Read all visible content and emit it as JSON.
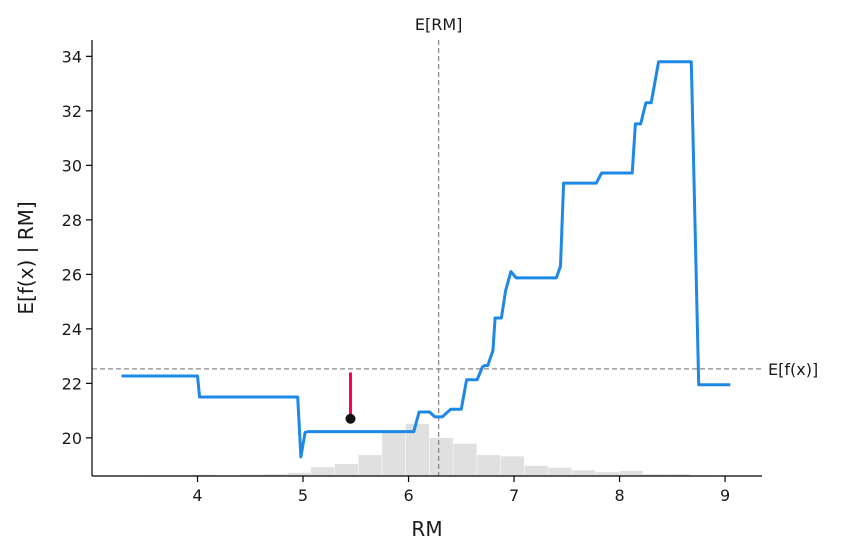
{
  "chart_data": {
    "type": "line",
    "xlabel": "RM",
    "ylabel": "E[f(x) | RM]",
    "xlim": [
      3.0,
      9.35
    ],
    "ylim": [
      18.6,
      34.6
    ],
    "xticks": [
      4,
      5,
      6,
      7,
      8,
      9
    ],
    "yticks": [
      20,
      22,
      24,
      26,
      28,
      30,
      32,
      34
    ],
    "grid": false,
    "reference_lines": {
      "vertical": {
        "label": "E[RM]",
        "x": 6.285
      },
      "horizontal": {
        "label": "E[f(x)]",
        "y": 22.53
      }
    },
    "series": [
      {
        "color": "#1e88e5",
        "x": [
          3.28,
          4.0,
          4.02,
          4.95,
          4.98,
          5.02,
          5.05,
          5.95,
          6.05,
          6.1,
          6.2,
          6.25,
          6.32,
          6.4,
          6.5,
          6.55,
          6.65,
          6.7,
          6.72,
          6.75,
          6.8,
          6.82,
          6.88,
          6.9,
          6.92,
          6.97,
          7.02,
          7.08,
          7.12,
          7.4,
          7.44,
          7.47,
          7.78,
          7.83,
          7.86,
          8.12,
          8.15,
          8.2,
          8.25,
          8.3,
          8.37,
          8.43,
          8.68,
          8.75,
          9.05
        ],
        "values": [
          22.27,
          22.27,
          21.5,
          21.5,
          19.3,
          20.2,
          20.23,
          20.23,
          20.23,
          20.95,
          20.95,
          20.77,
          20.77,
          21.05,
          21.05,
          22.13,
          22.13,
          22.6,
          22.65,
          22.65,
          23.2,
          24.4,
          24.4,
          24.9,
          25.4,
          26.1,
          25.87,
          25.87,
          25.87,
          25.87,
          26.3,
          29.35,
          29.35,
          29.72,
          29.72,
          29.72,
          31.52,
          31.52,
          32.3,
          32.3,
          33.8,
          33.8,
          33.8,
          21.95,
          21.95
        ]
      }
    ],
    "histogram": {
      "color": "#e0e0e0",
      "bin_edges": [
        3.5,
        3.725,
        3.95,
        4.175,
        4.4,
        4.625,
        4.85,
        5.075,
        5.3,
        5.525,
        5.75,
        5.975,
        6.2,
        6.425,
        6.65,
        6.875,
        7.1,
        7.325,
        7.55,
        7.775,
        8.0,
        8.225,
        8.45,
        8.675,
        8.9
      ],
      "counts": [
        1,
        1,
        2,
        1,
        2,
        3,
        5,
        14,
        19,
        33,
        72,
        82,
        60,
        51,
        33,
        31,
        16,
        13,
        9,
        6,
        8,
        3,
        3,
        1
      ]
    },
    "instance": {
      "x": 5.45,
      "value": 20.7,
      "baseline": 22.4,
      "point_color": "#111111",
      "line_color": "#ff0051"
    }
  }
}
